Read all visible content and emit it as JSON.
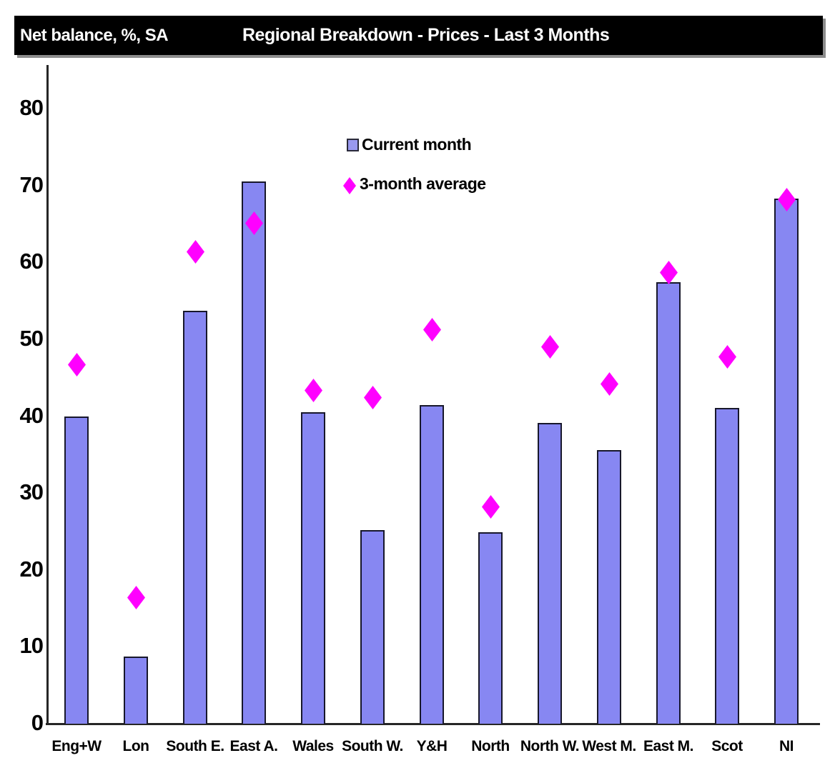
{
  "header": {
    "ylabel": "Net balance, %, SA",
    "title": "Regional Breakdown - Prices - Last 3 Months"
  },
  "legend": {
    "items": [
      {
        "label": "Current month",
        "marker": "square-icon"
      },
      {
        "label": "3-month average",
        "marker": "diamond-icon"
      }
    ]
  },
  "colors": {
    "header_bg": "#000000",
    "header_text": "#FFFFFF",
    "bar_fill": "#8787F2",
    "bar_border": "#17172B",
    "legend_square_fill": "#9999EE",
    "marker_magenta": "#FF00FF",
    "axis": "#262626",
    "background": "#FFFFFF"
  },
  "chart_data": {
    "type": "bar",
    "title": "Regional Breakdown - Prices - Last 3 Months",
    "xlabel": "",
    "ylabel": "Net balance, %, SA",
    "categories": [
      "Eng+W",
      "Lon",
      "South E.",
      "East A.",
      "Wales",
      "South W.",
      "Y&H",
      "North",
      "North W.",
      "West M.",
      "East M.",
      "Scot",
      "NI"
    ],
    "series": [
      {
        "name": "Current month",
        "type": "bar",
        "values": [
          39.9,
          8.6,
          53.6,
          70.4,
          40.4,
          25.1,
          41.4,
          24.8,
          39.0,
          35.5,
          57.3,
          41.0,
          68.2
        ]
      },
      {
        "name": "3-month average",
        "type": "scatter",
        "marker": "diamond",
        "values": [
          46.7,
          16.4,
          61.3,
          65.1,
          43.3,
          42.4,
          51.2,
          28.2,
          49.0,
          44.1,
          58.6,
          47.7,
          68.1
        ]
      }
    ],
    "ylim": [
      0,
      85
    ],
    "yticks": [
      0,
      10,
      20,
      30,
      40,
      50,
      60,
      70,
      80
    ],
    "grid": false,
    "legend_position": "upper-center-inside"
  }
}
